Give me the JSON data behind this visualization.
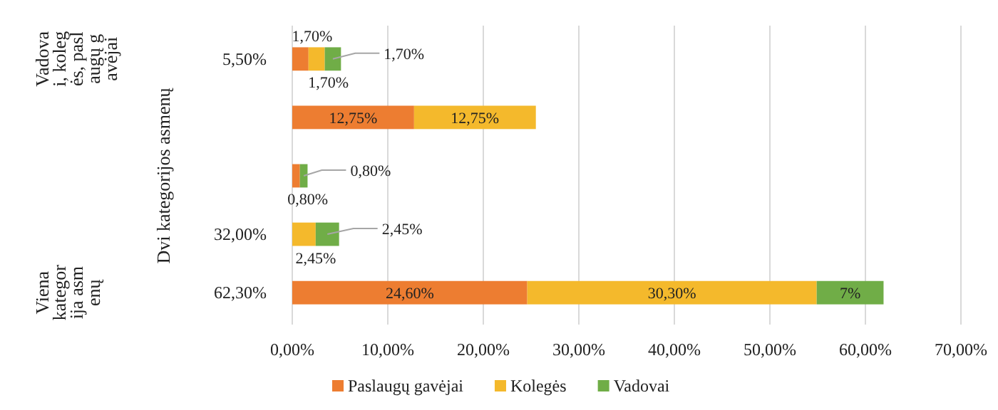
{
  "chart_data": {
    "type": "bar",
    "orientation": "horizontal",
    "stacked": true,
    "categories": [
      "5,50%",
      null,
      null,
      "32,00%",
      "62,30%"
    ],
    "series": [
      {
        "name": "Paslaugų gavėjai",
        "color": "#ed7d31",
        "values": [
          1.7,
          12.75,
          0.8,
          null,
          24.6
        ],
        "value_labels": [
          "1,70%",
          "12,75%",
          "0,80%",
          null,
          "24,60%"
        ]
      },
      {
        "name": "Kolegės",
        "color": "#f4b92c",
        "values": [
          1.7,
          12.75,
          null,
          2.45,
          30.3
        ],
        "value_labels": [
          "1,70%",
          "12,75%",
          null,
          "2,45%",
          "30,30%"
        ]
      },
      {
        "name": "Vadovai",
        "color": "#70ad47",
        "values": [
          1.7,
          null,
          0.8,
          2.45,
          7
        ],
        "value_labels": [
          "1,70%",
          null,
          "0,80%",
          "2,45%",
          "7%"
        ]
      }
    ],
    "xlim": [
      0,
      70
    ],
    "xticks": [
      {
        "value": 0,
        "label": "0,00%"
      },
      {
        "value": 10,
        "label": "10,00%"
      },
      {
        "value": 20,
        "label": "20,00%"
      },
      {
        "value": 30,
        "label": "30,00%"
      },
      {
        "value": 40,
        "label": "40,00%"
      },
      {
        "value": 50,
        "label": "50,00%"
      },
      {
        "value": 60,
        "label": "60,00%"
      },
      {
        "value": 70,
        "label": "70,00%"
      }
    ],
    "grid": "x",
    "legend": "bottom",
    "annotations": [
      "Vadovai, kolegės, paslaugų gavėjai",
      "Dvi kategorijos asmenų",
      "Viena kategorija asmenų"
    ]
  }
}
